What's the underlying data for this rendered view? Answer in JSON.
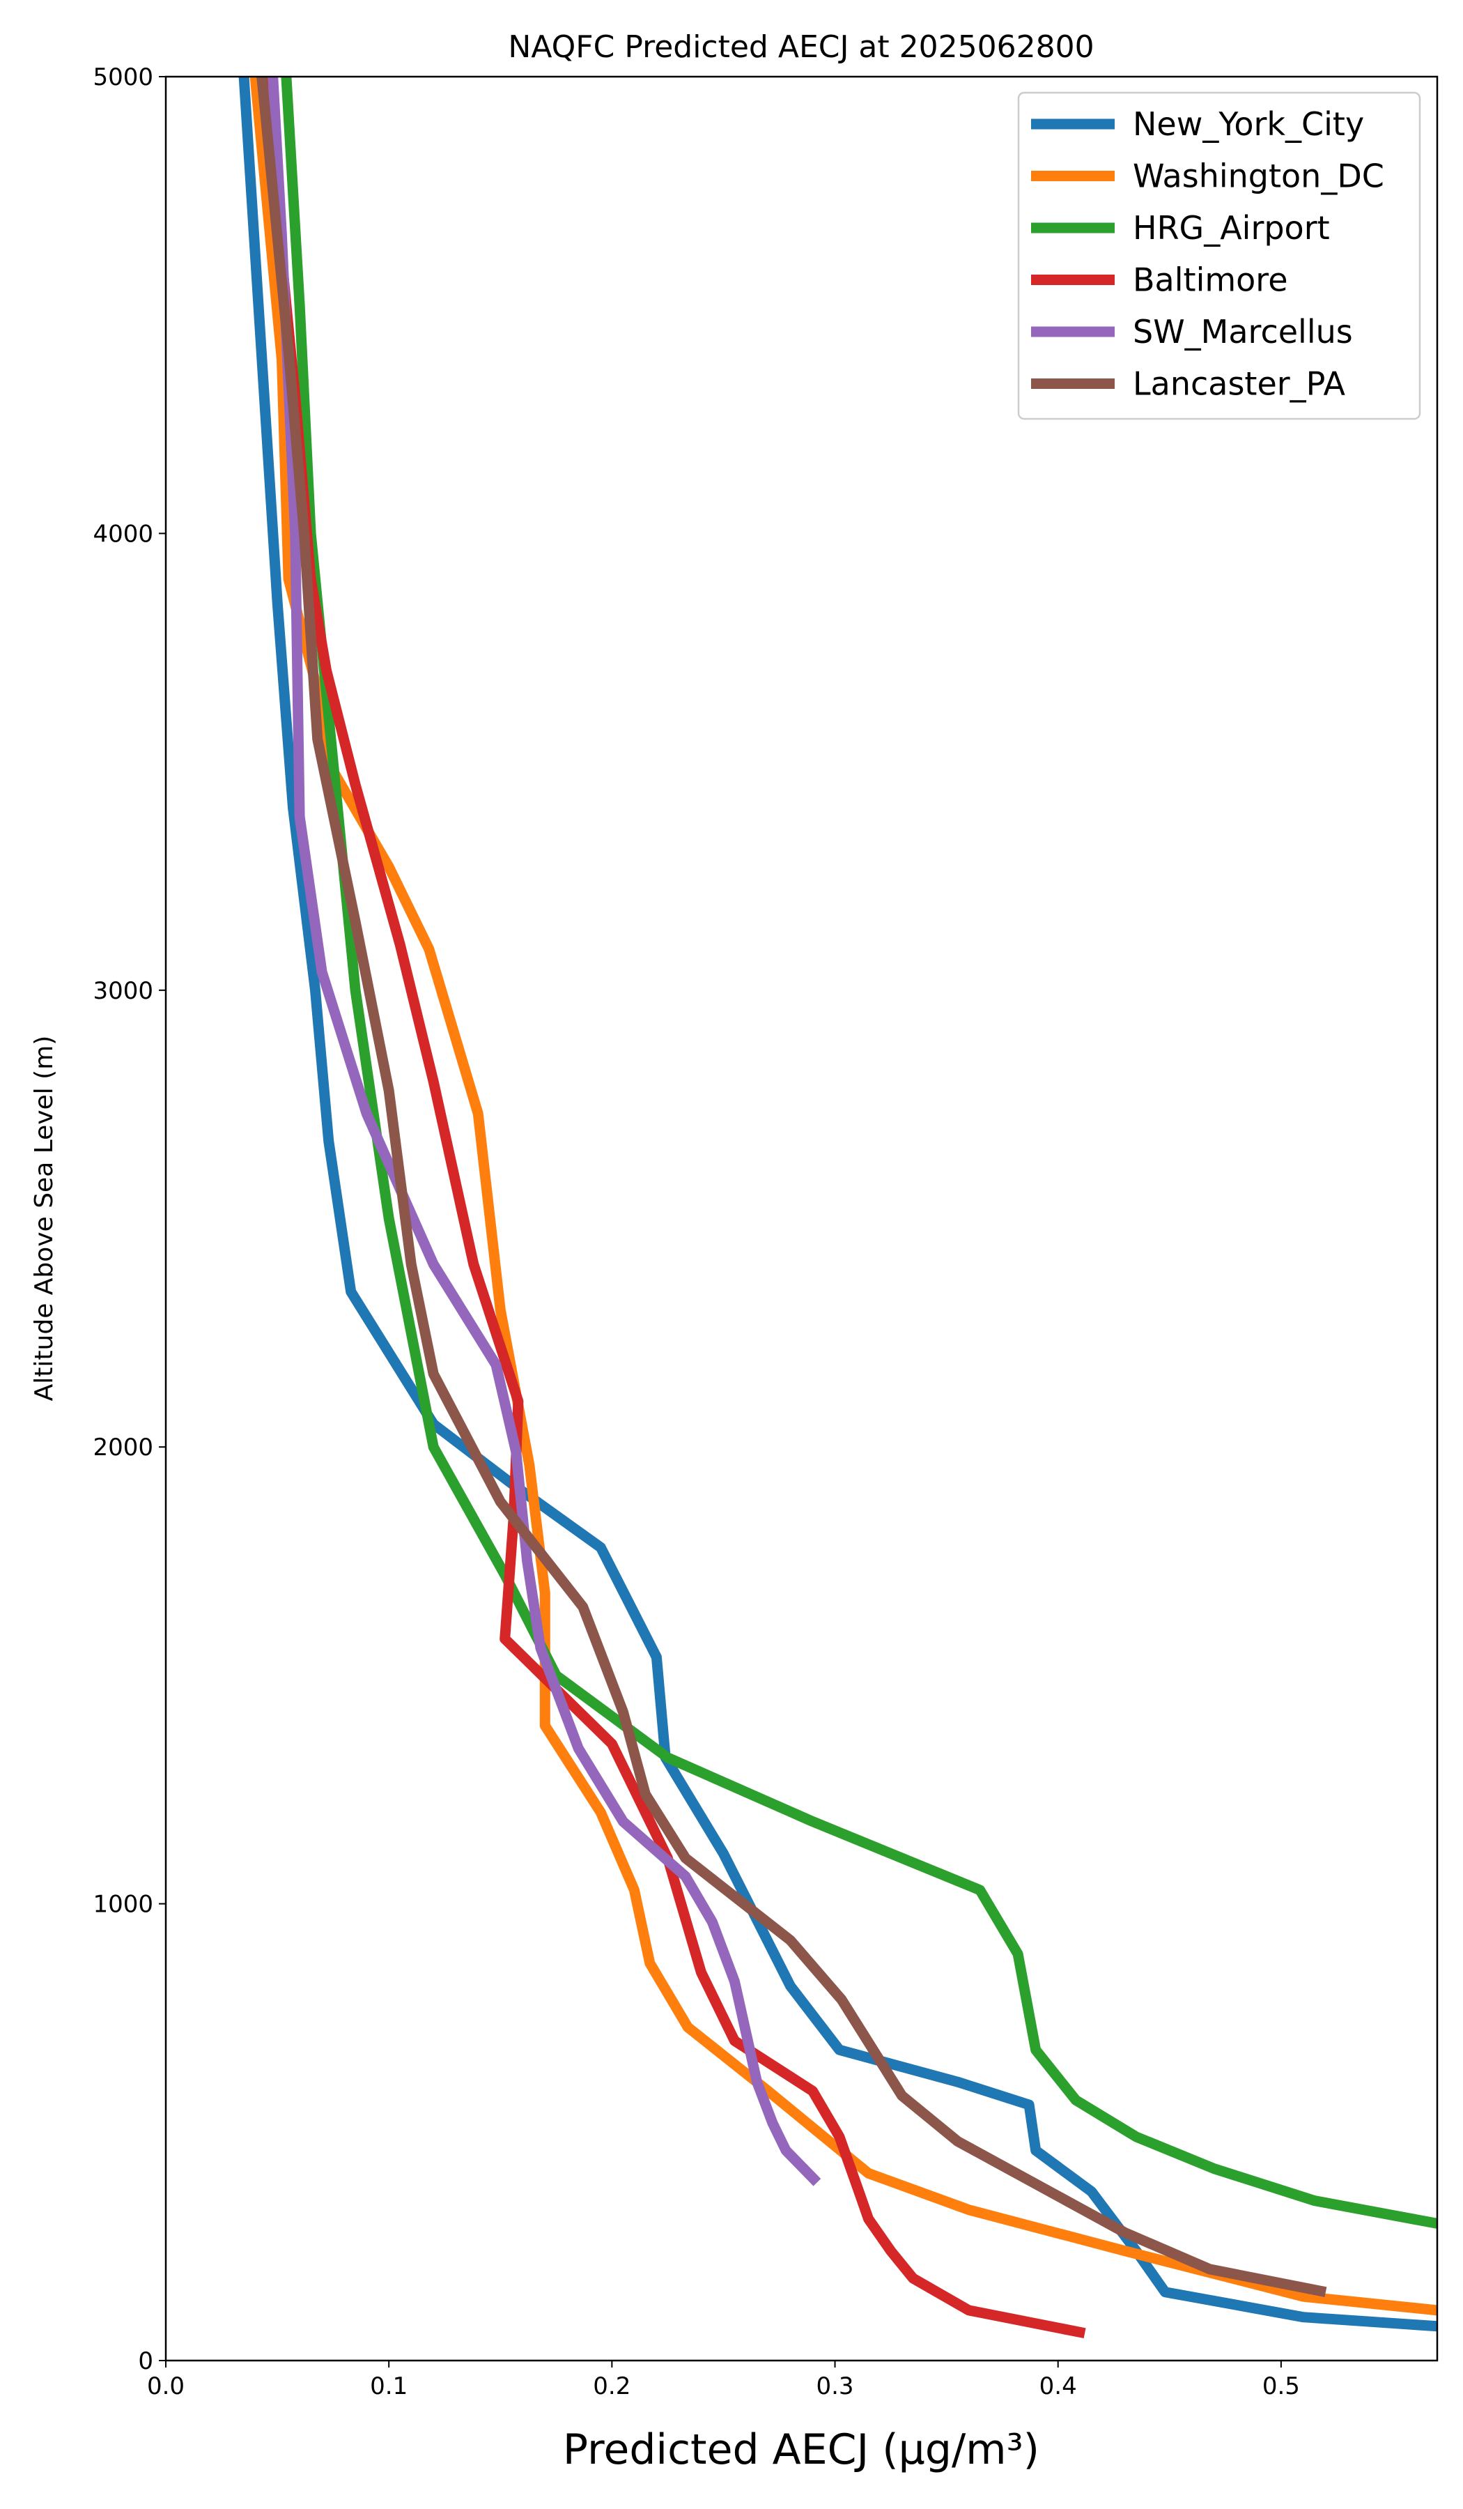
{
  "chart_data": {
    "type": "line",
    "title": "NAQFC Predicted AECJ at 2025062800",
    "xlabel": "Predicted AECJ (μg/m³)",
    "ylabel": "Altitude Above Sea Level (m)",
    "xlim": [
      0.0,
      0.57
    ],
    "ylim": [
      0,
      5000
    ],
    "x_ticks": [
      "0.0",
      "0.1",
      "0.2",
      "0.3",
      "0.4",
      "0.5"
    ],
    "y_ticks": [
      "0",
      "1000",
      "2000",
      "3000",
      "4000",
      "5000"
    ],
    "legend_position": "top-right",
    "grid": false,
    "series": [
      {
        "name": "New_York_City",
        "color": "#1f77b4",
        "points": [
          [
            0.035,
            5000
          ],
          [
            0.05,
            3850
          ],
          [
            0.057,
            3400
          ],
          [
            0.067,
            3000
          ],
          [
            0.073,
            2670
          ],
          [
            0.083,
            2340
          ],
          [
            0.12,
            2050
          ],
          [
            0.155,
            1920
          ],
          [
            0.195,
            1780
          ],
          [
            0.22,
            1540
          ],
          [
            0.224,
            1320
          ],
          [
            0.25,
            1110
          ],
          [
            0.28,
            820
          ],
          [
            0.302,
            680
          ],
          [
            0.355,
            610
          ],
          [
            0.387,
            560
          ],
          [
            0.39,
            460
          ],
          [
            0.415,
            370
          ],
          [
            0.435,
            240
          ],
          [
            0.448,
            150
          ],
          [
            0.51,
            95
          ],
          [
            0.57,
            75
          ]
        ]
      },
      {
        "name": "Washington_DC",
        "color": "#ff7f0e",
        "points": [
          [
            0.04,
            5000
          ],
          [
            0.052,
            4380
          ],
          [
            0.055,
            3900
          ],
          [
            0.07,
            3620
          ],
          [
            0.075,
            3480
          ],
          [
            0.1,
            3270
          ],
          [
            0.118,
            3090
          ],
          [
            0.14,
            2730
          ],
          [
            0.15,
            2300
          ],
          [
            0.163,
            1960
          ],
          [
            0.17,
            1680
          ],
          [
            0.17,
            1390
          ],
          [
            0.195,
            1200
          ],
          [
            0.21,
            1030
          ],
          [
            0.217,
            870
          ],
          [
            0.234,
            730
          ],
          [
            0.27,
            590
          ],
          [
            0.3,
            470
          ],
          [
            0.315,
            410
          ],
          [
            0.36,
            330
          ],
          [
            0.43,
            240
          ],
          [
            0.51,
            140
          ],
          [
            0.57,
            110
          ]
        ]
      },
      {
        "name": "HRG_Airport",
        "color": "#2ca02c",
        "points": [
          [
            0.054,
            5000
          ],
          [
            0.06,
            4500
          ],
          [
            0.065,
            4000
          ],
          [
            0.075,
            3500
          ],
          [
            0.085,
            3000
          ],
          [
            0.1,
            2500
          ],
          [
            0.12,
            2000
          ],
          [
            0.152,
            1720
          ],
          [
            0.175,
            1500
          ],
          [
            0.225,
            1320
          ],
          [
            0.29,
            1180
          ],
          [
            0.365,
            1030
          ],
          [
            0.382,
            890
          ],
          [
            0.39,
            680
          ],
          [
            0.408,
            570
          ],
          [
            0.435,
            490
          ],
          [
            0.47,
            420
          ],
          [
            0.515,
            350
          ],
          [
            0.57,
            300
          ]
        ]
      },
      {
        "name": "Baltimore",
        "color": "#d62728",
        "points": [
          [
            0.045,
            5000
          ],
          [
            0.05,
            4700
          ],
          [
            0.058,
            4300
          ],
          [
            0.065,
            3900
          ],
          [
            0.072,
            3700
          ],
          [
            0.085,
            3450
          ],
          [
            0.105,
            3100
          ],
          [
            0.12,
            2800
          ],
          [
            0.138,
            2400
          ],
          [
            0.158,
            2100
          ],
          [
            0.156,
            1850
          ],
          [
            0.152,
            1580
          ],
          [
            0.2,
            1350
          ],
          [
            0.225,
            1100
          ],
          [
            0.24,
            850
          ],
          [
            0.255,
            700
          ],
          [
            0.29,
            590
          ],
          [
            0.302,
            490
          ],
          [
            0.31,
            380
          ],
          [
            0.315,
            310
          ],
          [
            0.325,
            240
          ],
          [
            0.335,
            180
          ],
          [
            0.36,
            110
          ],
          [
            0.412,
            60
          ]
        ]
      },
      {
        "name": "SW_Marcellus",
        "color": "#9467bd",
        "points": [
          [
            0.048,
            5000
          ],
          [
            0.052,
            4650
          ],
          [
            0.058,
            4000
          ],
          [
            0.06,
            3380
          ],
          [
            0.07,
            3040
          ],
          [
            0.09,
            2730
          ],
          [
            0.12,
            2400
          ],
          [
            0.148,
            2180
          ],
          [
            0.157,
            1990
          ],
          [
            0.162,
            1750
          ],
          [
            0.168,
            1560
          ],
          [
            0.185,
            1340
          ],
          [
            0.205,
            1180
          ],
          [
            0.233,
            1060
          ],
          [
            0.245,
            960
          ],
          [
            0.255,
            830
          ],
          [
            0.26,
            720
          ],
          [
            0.265,
            610
          ],
          [
            0.272,
            520
          ],
          [
            0.278,
            460
          ],
          [
            0.292,
            390
          ]
        ]
      },
      {
        "name": "Lancaster_PA",
        "color": "#8c564b",
        "points": [
          [
            0.043,
            5000
          ],
          [
            0.055,
            4400
          ],
          [
            0.062,
            4000
          ],
          [
            0.068,
            3550
          ],
          [
            0.085,
            3150
          ],
          [
            0.1,
            2780
          ],
          [
            0.11,
            2400
          ],
          [
            0.12,
            2160
          ],
          [
            0.15,
            1880
          ],
          [
            0.187,
            1650
          ],
          [
            0.205,
            1420
          ],
          [
            0.215,
            1240
          ],
          [
            0.233,
            1100
          ],
          [
            0.28,
            920
          ],
          [
            0.303,
            790
          ],
          [
            0.33,
            580
          ],
          [
            0.355,
            480
          ],
          [
            0.43,
            280
          ],
          [
            0.468,
            200
          ],
          [
            0.52,
            150
          ]
        ]
      }
    ]
  }
}
